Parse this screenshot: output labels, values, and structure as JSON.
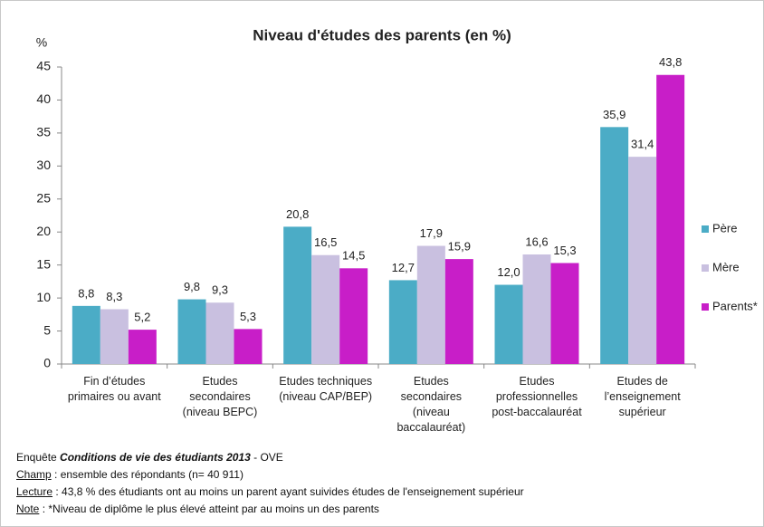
{
  "chart_data": {
    "type": "bar",
    "title": "Niveau d'études des parents (en %)",
    "y_label": "%",
    "categories": [
      [
        "Fin d’études",
        "primaires ou avant"
      ],
      [
        "Etudes",
        "secondaires",
        "(niveau BEPC)"
      ],
      [
        "Etudes techniques",
        "(niveau CAP/BEP)"
      ],
      [
        "Etudes",
        "secondaires",
        "(niveau",
        "baccalauréat)"
      ],
      [
        "Etudes",
        "professionnelles",
        "post-baccalauréat"
      ],
      [
        "Etudes de",
        "l’enseignement",
        "supérieur"
      ]
    ],
    "series": [
      {
        "name": "Père",
        "color": "#4bacc6",
        "values": [
          8.8,
          9.8,
          20.8,
          12.7,
          12.0,
          35.9
        ],
        "value_labels": [
          "8,8",
          "9,8",
          "20,8",
          "12,7",
          "12,0",
          "35,9"
        ]
      },
      {
        "name": "Mère",
        "color": "#c9c0e0",
        "values": [
          8.3,
          9.3,
          16.5,
          17.9,
          16.6,
          31.4
        ],
        "value_labels": [
          "8,3",
          "9,3",
          "16,5",
          "17,9",
          "16,6",
          "31,4"
        ]
      },
      {
        "name": "Parents*",
        "color": "#c81ec8",
        "values": [
          5.2,
          5.3,
          14.5,
          15.9,
          15.3,
          43.8
        ],
        "value_labels": [
          "5,2",
          "5,3",
          "14,5",
          "15,9",
          "15,3",
          "43,8"
        ]
      }
    ],
    "ylim": [
      0,
      45
    ],
    "yticks": [
      0,
      5,
      10,
      15,
      20,
      25,
      30,
      35,
      40,
      45
    ],
    "grid": false,
    "legend": "right"
  },
  "notes": [
    {
      "text": "Enquête ",
      "emphasis": "Conditions de vie des étudiants 2013",
      "after": " - OVE"
    },
    {
      "label": "Champ",
      "text": " : ensemble des répondants (n= 40 911)"
    },
    {
      "label": "Lecture",
      "text": " : 43,8 % des étudiants ont au moins un parent ayant suivides études de l'enseignement supérieur"
    },
    {
      "label": "Note",
      "text": " : *Niveau de diplôme le plus élevé atteint par au moins un des parents"
    }
  ]
}
